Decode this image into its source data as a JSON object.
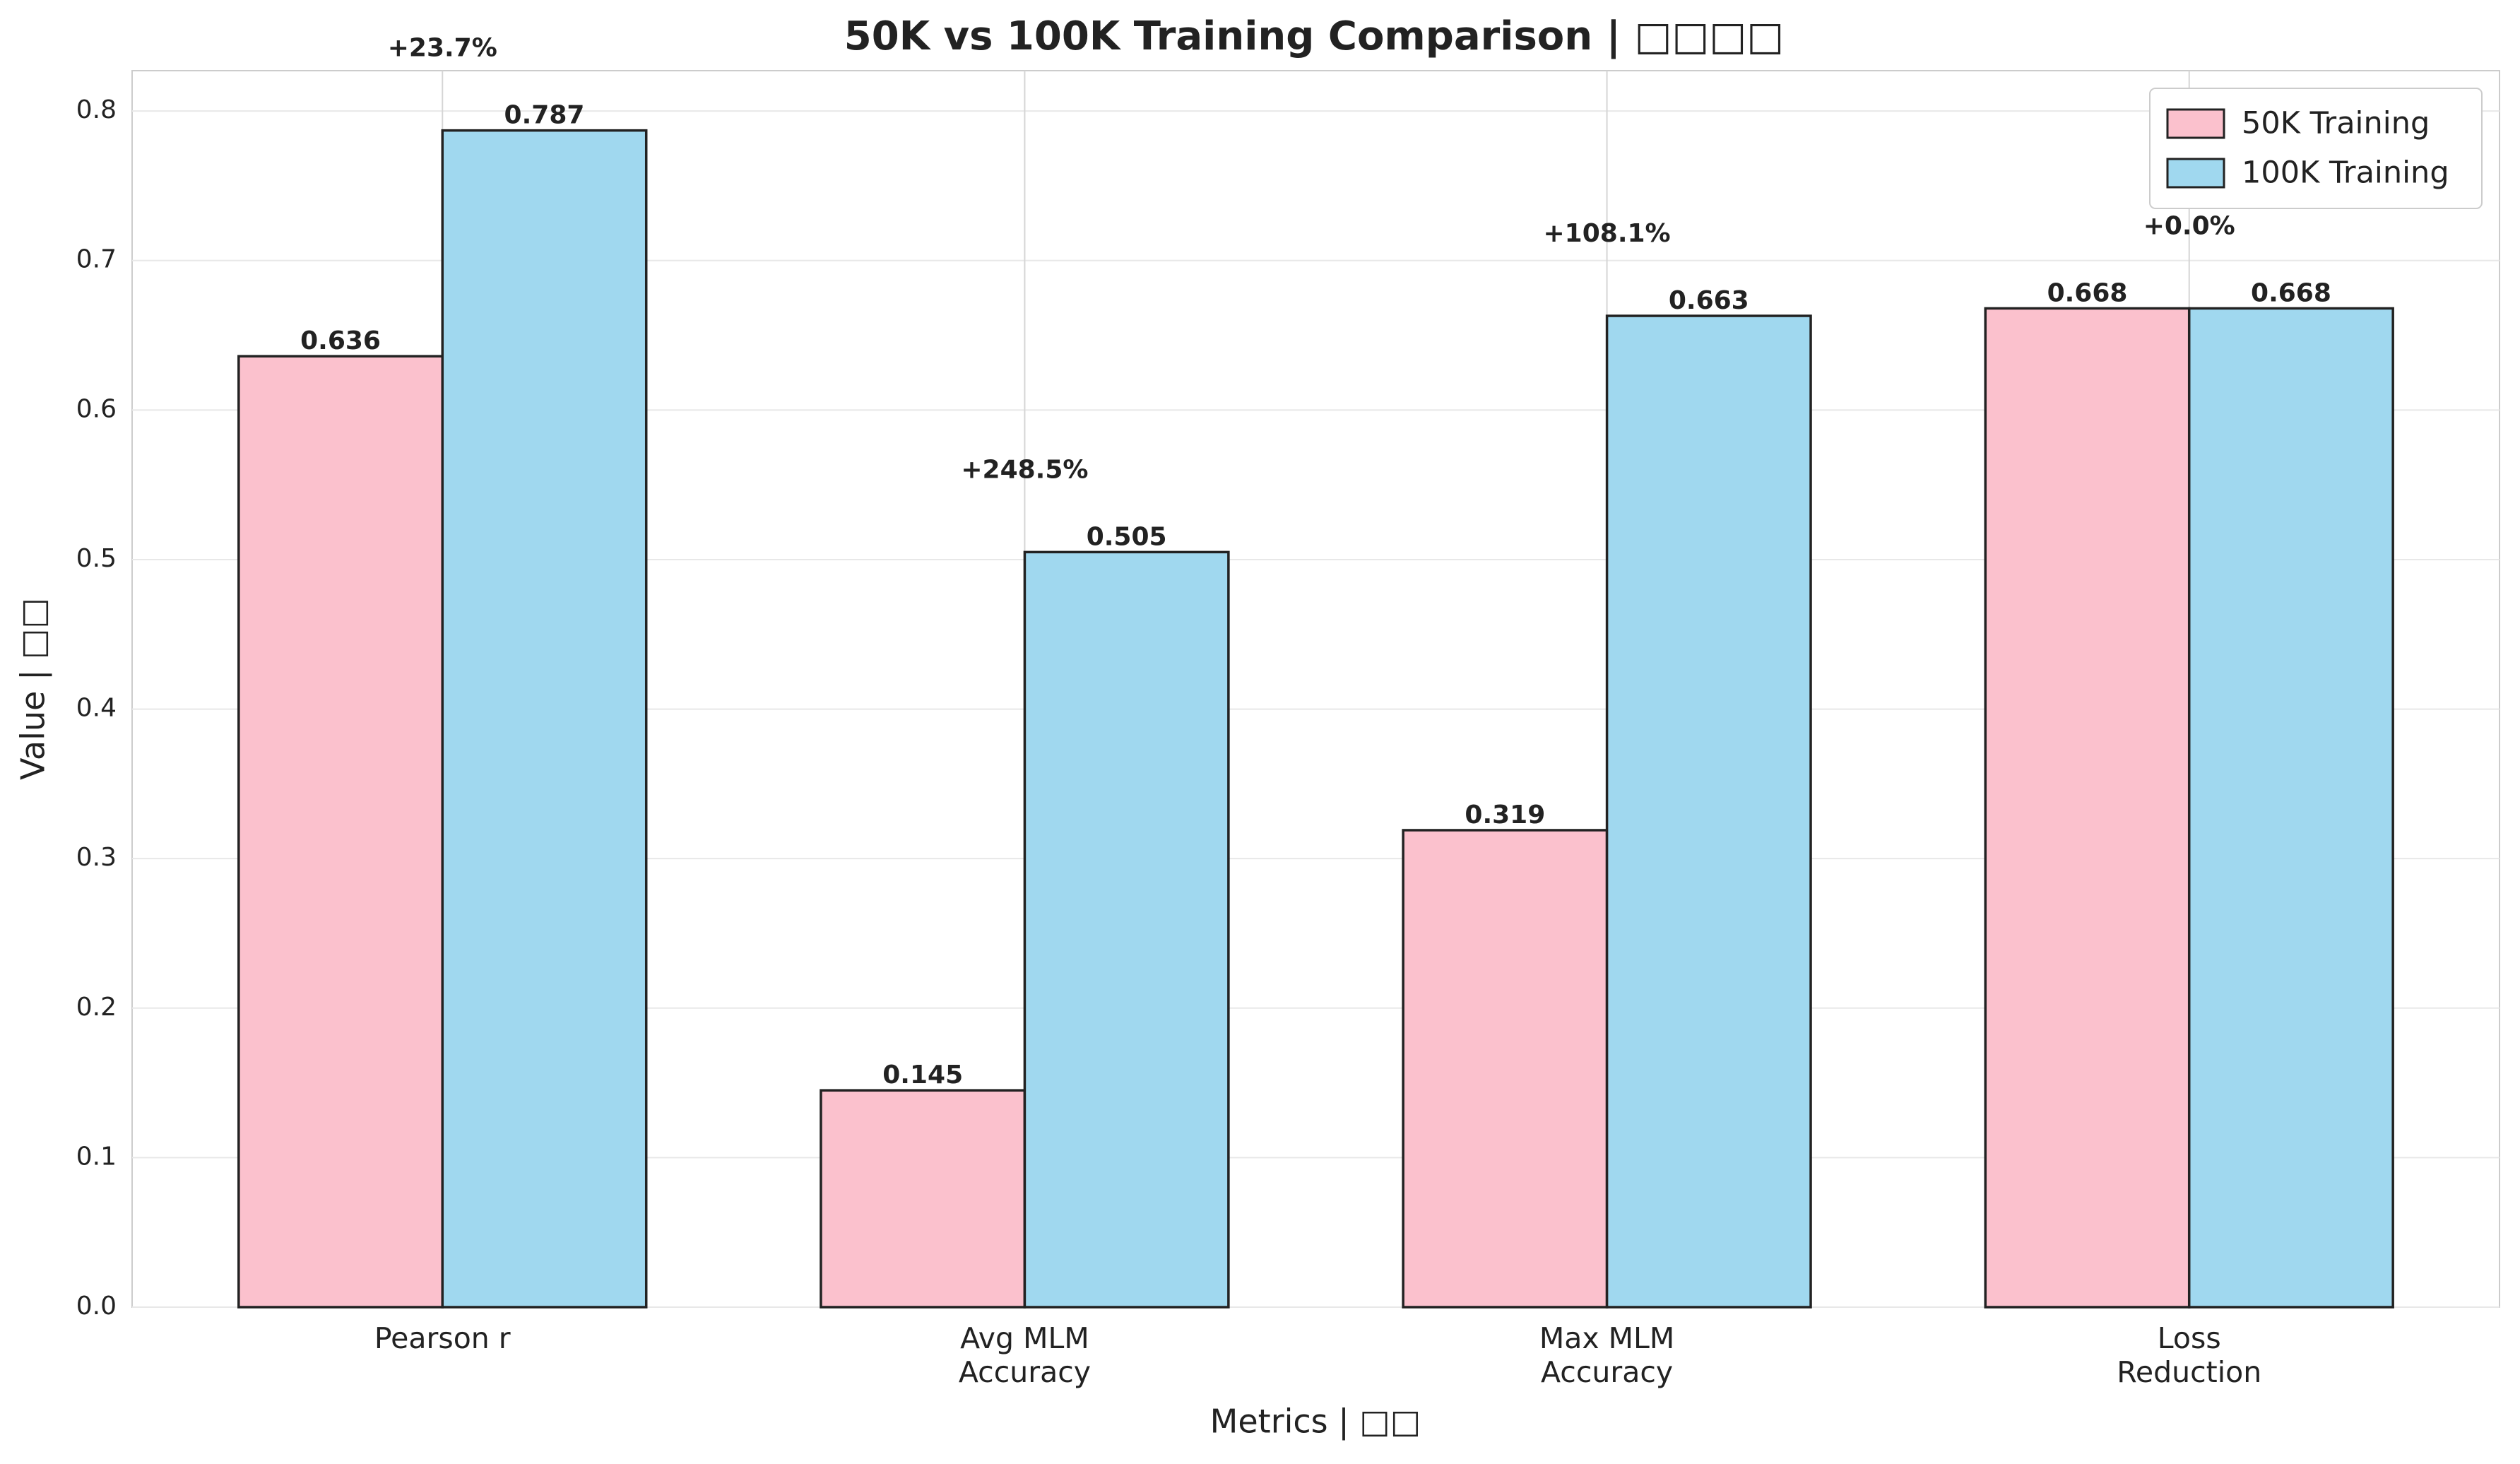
{
  "chart_data": {
    "type": "bar",
    "title": "50K vs 100K Training Comparison | □□□□",
    "x_label": "Metrics | □□",
    "y_label": "Value | □□",
    "categories": [
      "Pearson r",
      "Avg MLM\nAccuracy",
      "Max MLM\nAccuracy",
      "Loss\nReduction"
    ],
    "series": [
      {
        "name": "50K Training",
        "color": "#fbc1cd",
        "values": [
          0.636,
          0.145,
          0.319,
          0.668
        ]
      },
      {
        "name": "100K Training",
        "color": "#a0d8ef",
        "values": [
          0.787,
          0.505,
          0.663,
          0.668
        ]
      }
    ],
    "annotations": [
      "+23.7%",
      "+248.5%",
      "+108.1%",
      "+0.0%"
    ],
    "annotation_color": "#008000",
    "ylim": [
      0,
      0.827
    ],
    "yticks": [
      {
        "value": 0,
        "label": "0.0"
      },
      0.1,
      0.2,
      0.3,
      0.4,
      0.5,
      0.6,
      0.7,
      0.8
    ],
    "grid": true,
    "legend": "upper right"
  }
}
